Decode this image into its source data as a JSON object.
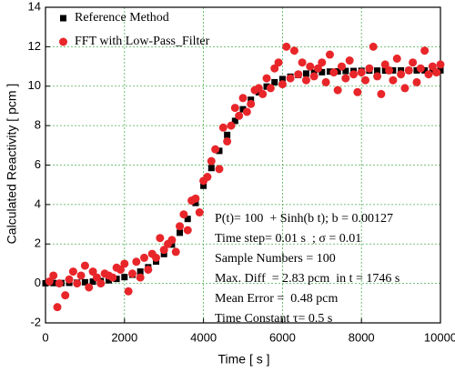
{
  "chart_data": {
    "type": "scatter",
    "x_label": "Time [ s ]",
    "y_label": "Calculated Reactivity [ pcm ]",
    "xlim": [
      0,
      10000
    ],
    "xticks": [
      0,
      2000,
      4000,
      6000,
      8000,
      10000
    ],
    "ylim": [
      -2,
      14
    ],
    "yticks": [
      -2,
      0,
      2,
      4,
      6,
      8,
      10,
      12,
      14
    ],
    "grid": true,
    "legend": "upper left",
    "annotations": [
      "P(t)= 100  + Sinh(b t); b = 0.00127",
      "Time step= 0.01 s  ; σ = 0.01",
      "Sample Numbers = 100",
      "Max. Diff  = 2.83 pcm  in t = 1746 s",
      "Mean Error =  0.48 pcm",
      "Time Constant τ= 0.5 s"
    ],
    "series": [
      {
        "name": "Reference Method",
        "color": "#000000",
        "marker": "square",
        "x": [
          0,
          200,
          400,
          600,
          800,
          1000,
          1200,
          1400,
          1600,
          1800,
          2000,
          2200,
          2400,
          2600,
          2800,
          3000,
          3200,
          3400,
          3600,
          3800,
          4000,
          4200,
          4400,
          4600,
          4800,
          5000,
          5200,
          5400,
          5600,
          5800,
          6000,
          6200,
          6400,
          6600,
          6800,
          7000,
          7200,
          7400,
          7600,
          7800,
          8000,
          8200,
          8400,
          8600,
          8800,
          9000,
          9200,
          9400,
          9600,
          9800,
          10000
        ],
        "values": [
          0.01,
          0.02,
          0.02,
          0.03,
          0.04,
          0.06,
          0.09,
          0.12,
          0.16,
          0.23,
          0.32,
          0.44,
          0.6,
          0.82,
          1.11,
          1.49,
          1.97,
          2.57,
          3.27,
          4.08,
          4.95,
          5.85,
          6.72,
          7.53,
          8.24,
          8.83,
          9.31,
          9.69,
          9.98,
          10.2,
          10.36,
          10.48,
          10.57,
          10.64,
          10.68,
          10.71,
          10.74,
          10.75,
          10.77,
          10.77,
          10.78,
          10.79,
          10.79,
          10.79,
          10.8,
          10.8,
          10.8,
          10.8,
          10.8,
          10.8,
          10.8
        ]
      },
      {
        "name": "FFT with Low-Pass_Filter",
        "color": "#e8262a",
        "marker": "circle",
        "x": [
          100,
          200,
          300,
          350,
          500,
          600,
          700,
          800,
          900,
          1000,
          1100,
          1200,
          1300,
          1400,
          1500,
          1600,
          1700,
          1800,
          1900,
          2000,
          2100,
          2200,
          2300,
          2400,
          2500,
          2600,
          2700,
          2800,
          2900,
          3000,
          3100,
          3200,
          3300,
          3400,
          3500,
          3600,
          3700,
          3800,
          3900,
          4000,
          4100,
          4200,
          4300,
          4400,
          4500,
          4600,
          4700,
          4800,
          4900,
          5000,
          5100,
          5200,
          5300,
          5400,
          5500,
          5600,
          5700,
          5800,
          5900,
          6000,
          6100,
          6200,
          6300,
          6400,
          6500,
          6600,
          6700,
          6800,
          6900,
          7000,
          7100,
          7200,
          7300,
          7400,
          7500,
          7600,
          7700,
          7800,
          7900,
          8000,
          8100,
          8200,
          8300,
          8400,
          8500,
          8600,
          8700,
          8800,
          8900,
          9000,
          9100,
          9200,
          9300,
          9400,
          9500,
          9600,
          9700,
          9800,
          9900,
          10000
        ],
        "values": [
          0.1,
          0.4,
          -1.2,
          0.0,
          -0.6,
          0.2,
          0.6,
          0.0,
          0.4,
          0.9,
          -0.2,
          0.6,
          0.3,
          0.0,
          0.5,
          0.4,
          0.3,
          0.8,
          0.7,
          1.0,
          -0.4,
          0.5,
          1.1,
          0.3,
          1.3,
          0.7,
          1.5,
          1.3,
          2.3,
          1.7,
          2.0,
          2.2,
          1.6,
          2.9,
          3.5,
          2.7,
          4.2,
          4.3,
          3.6,
          5.2,
          5.4,
          6.2,
          6.8,
          5.8,
          7.9,
          7.2,
          8.0,
          8.9,
          8.5,
          9.4,
          8.7,
          9.1,
          9.8,
          9.9,
          9.6,
          10.4,
          9.9,
          10.9,
          11.2,
          10.1,
          12.0,
          10.4,
          11.8,
          10.6,
          11.2,
          10.3,
          11.0,
          10.5,
          10.9,
          11.2,
          10.2,
          11.6,
          10.7,
          9.8,
          11.0,
          10.4,
          11.3,
          10.6,
          9.7,
          10.7,
          10.3,
          10.9,
          12.0,
          10.5,
          9.6,
          11.1,
          10.8,
          10.3,
          11.4,
          10.6,
          9.9,
          10.8,
          11.2,
          10.2,
          10.9,
          11.8,
          10.6,
          11.0,
          10.7,
          11.1
        ]
      }
    ]
  }
}
